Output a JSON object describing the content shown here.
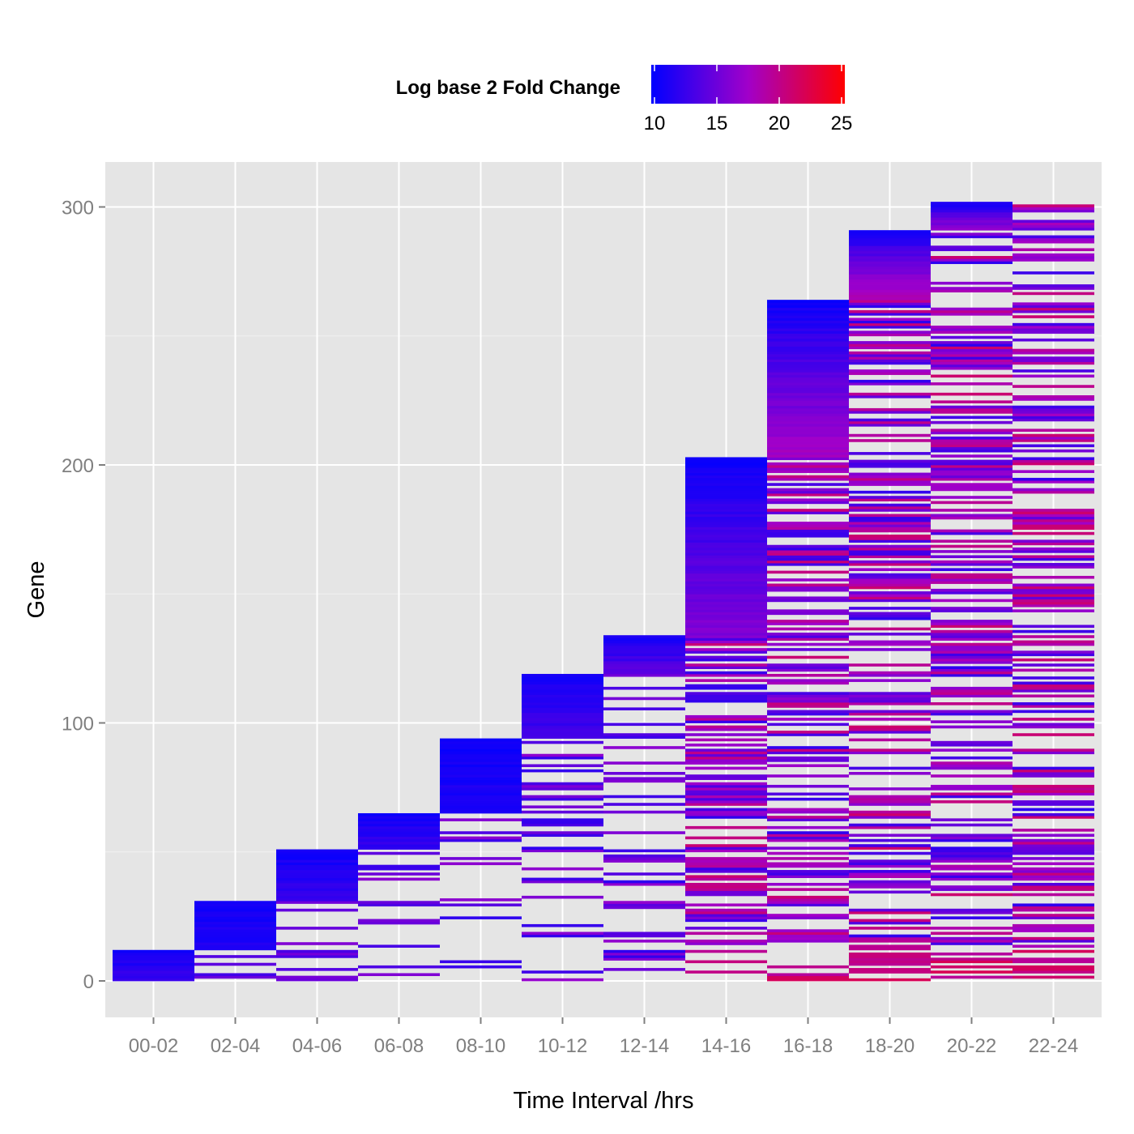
{
  "chart_data": {
    "type": "heatmap",
    "xlabel": "Time Interval /hrs",
    "ylabel": "Gene",
    "categories": [
      "00-02",
      "02-04",
      "04-06",
      "06-08",
      "08-10",
      "10-12",
      "12-14",
      "14-16",
      "16-18",
      "18-20",
      "20-22",
      "22-24"
    ],
    "y_ticks": [
      0,
      100,
      200,
      300
    ],
    "ylim": [
      -12,
      321
    ],
    "grid": true,
    "legend": {
      "title": "Log base 2 Fold Change",
      "placement": "top",
      "min": 10,
      "max": 25,
      "ticks": [
        10,
        15,
        20,
        25
      ],
      "low_color": "#0000ff",
      "high_color": "#ff0000"
    },
    "column_gene_counts": [
      12,
      31,
      51,
      65,
      94,
      119,
      134,
      203,
      264,
      291,
      302,
      301
    ],
    "column_base_values": [
      12,
      11,
      12,
      12,
      11,
      13,
      14,
      16,
      18,
      19,
      17,
      17
    ],
    "panel_background": "#e5e5e5"
  }
}
